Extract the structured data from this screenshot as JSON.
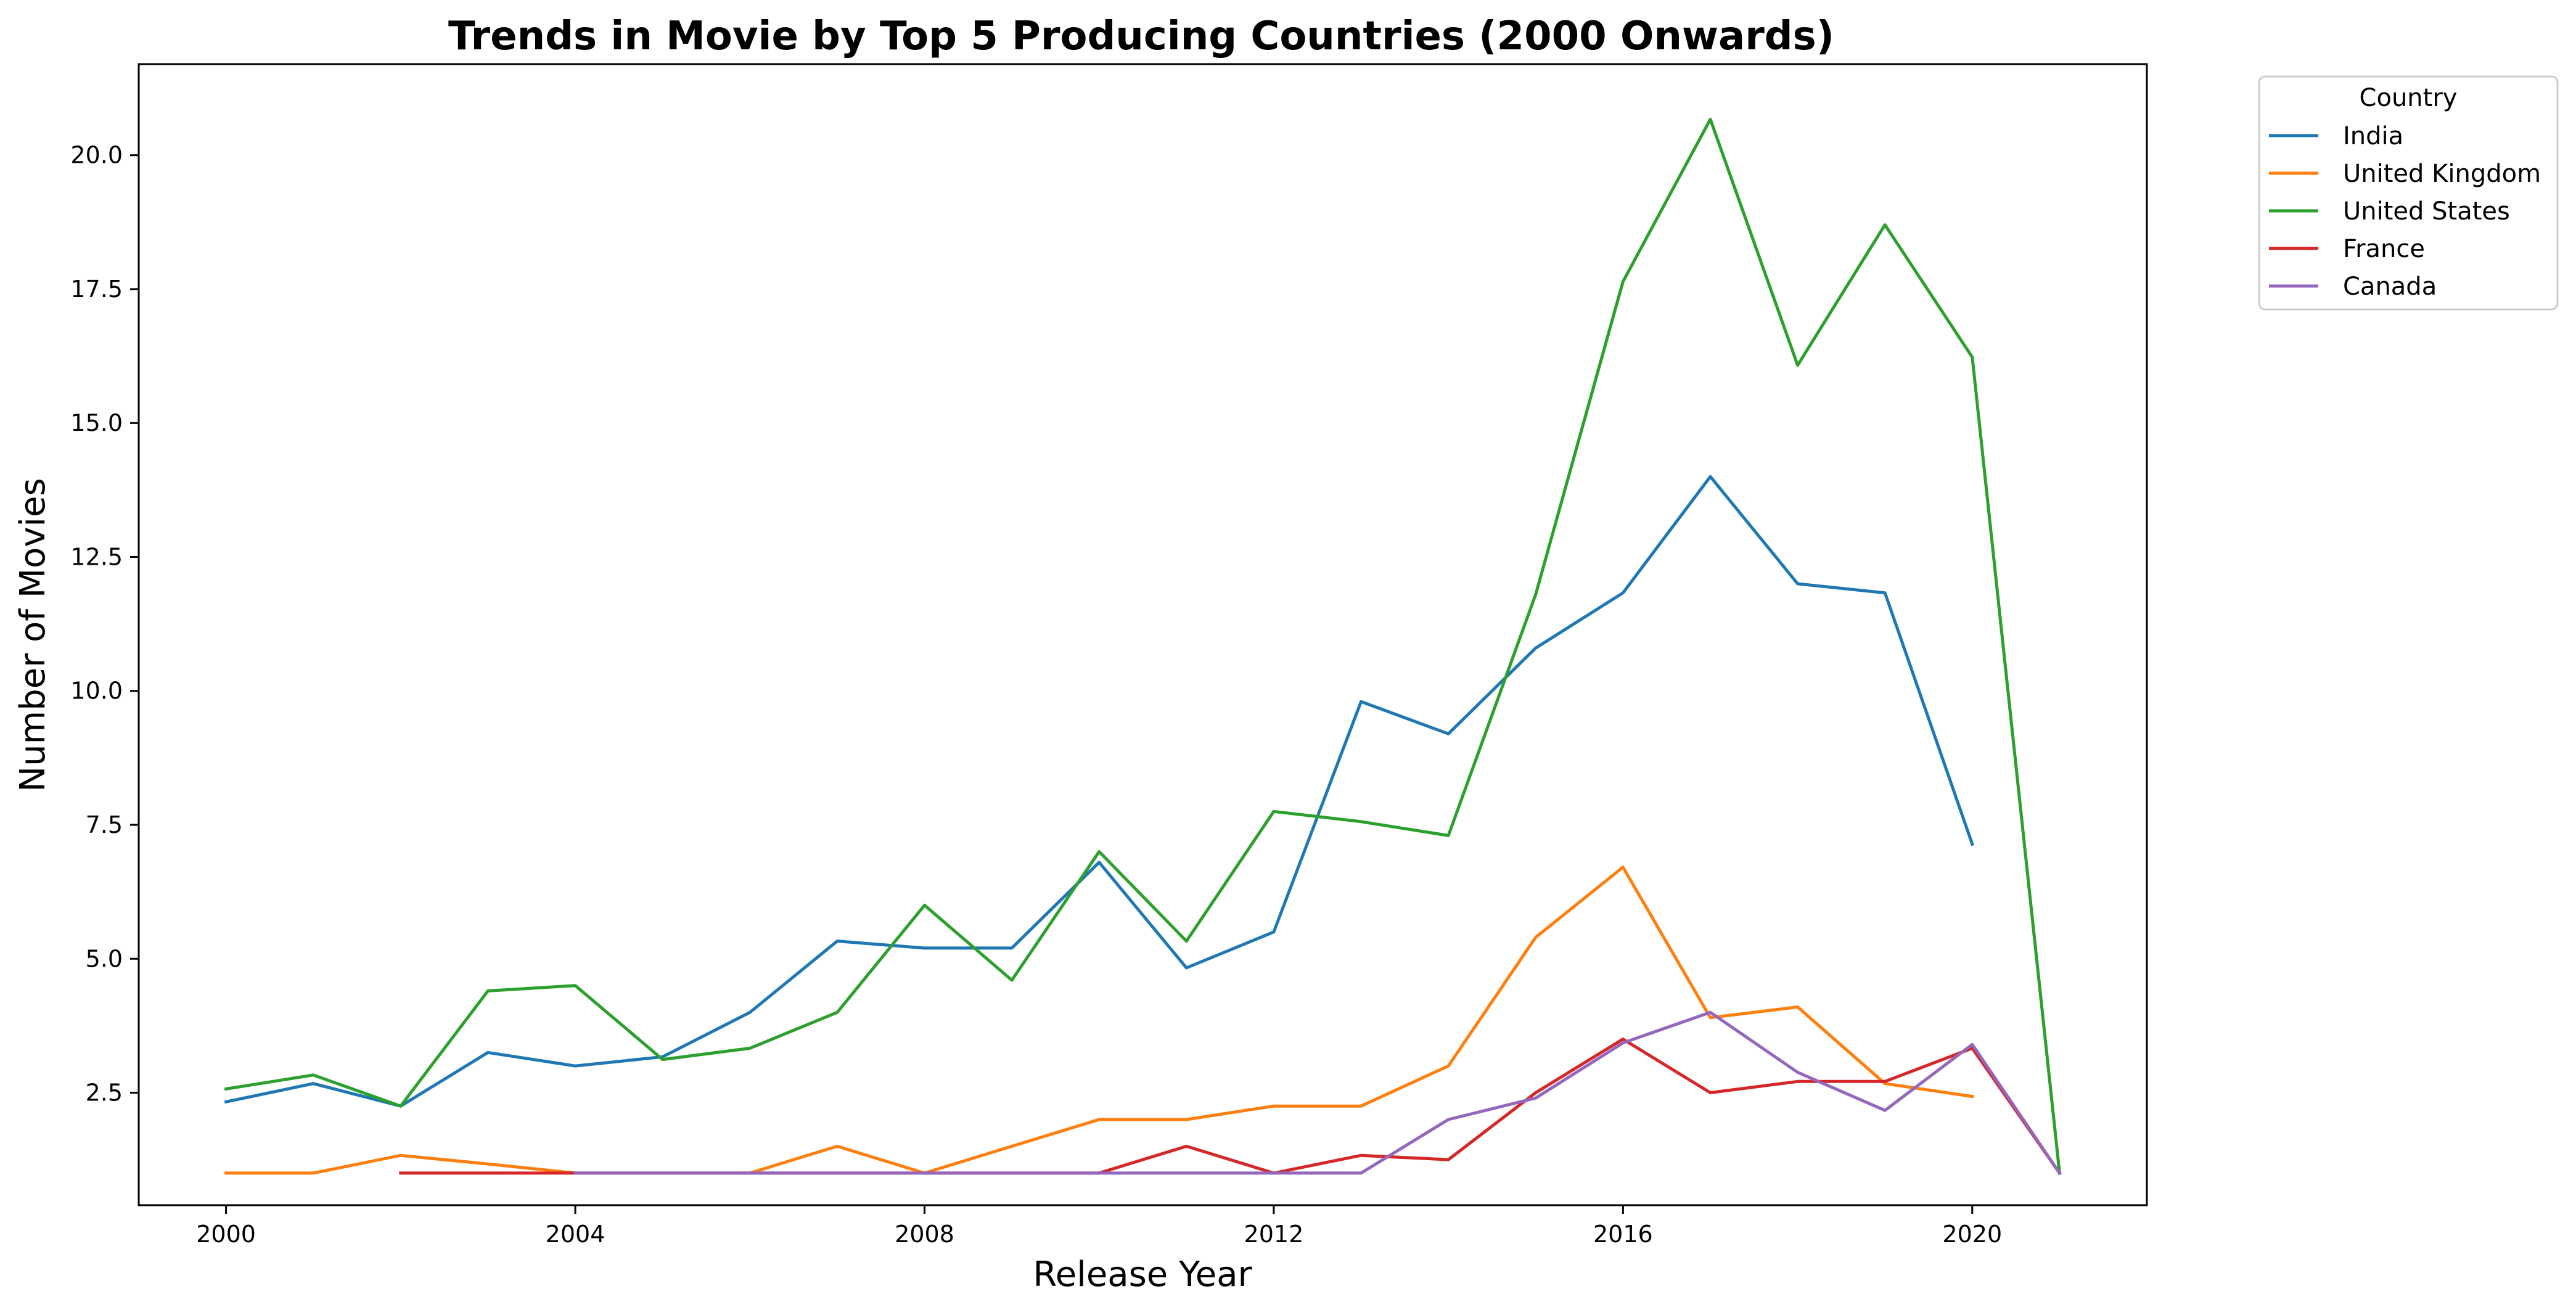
{
  "chart_data": {
    "type": "line",
    "title": "Trends in Movie by Top 5 Producing Countries (2000 Onwards)",
    "xlabel": "Release Year",
    "ylabel": "Number of Movies",
    "xlim": [
      1999,
      2022
    ],
    "ylim": [
      0.4,
      21.7
    ],
    "xticks": [
      2000,
      2004,
      2008,
      2012,
      2016,
      2020
    ],
    "xtick_labels": [
      "2000",
      "2004",
      "2008",
      "2012",
      "2016",
      "2020"
    ],
    "yticks": [
      2.5,
      5.0,
      7.5,
      10.0,
      12.5,
      15.0,
      17.5,
      20.0
    ],
    "ytick_labels": [
      "2.5",
      "5.0",
      "7.5",
      "10.0",
      "12.5",
      "15.0",
      "17.5",
      "20.0"
    ],
    "grid": false,
    "legend": {
      "title": "Country",
      "placement": "outside-top-right"
    },
    "series": [
      {
        "name": "India",
        "color": "#1f77b4",
        "points": [
          [
            2000,
            2.33
          ],
          [
            2001,
            2.67
          ],
          [
            2002,
            2.25
          ],
          [
            2003,
            3.25
          ],
          [
            2004,
            3.0
          ],
          [
            2005,
            3.17
          ],
          [
            2006,
            4.0
          ],
          [
            2007,
            5.33
          ],
          [
            2008,
            5.2
          ],
          [
            2009,
            5.2
          ],
          [
            2010,
            6.8
          ],
          [
            2011,
            4.83
          ],
          [
            2012,
            5.5
          ],
          [
            2013,
            9.8
          ],
          [
            2014,
            9.2
          ],
          [
            2015,
            10.8
          ],
          [
            2016,
            11.83
          ],
          [
            2017,
            14.0
          ],
          [
            2018,
            12.0
          ],
          [
            2019,
            11.83
          ],
          [
            2020,
            7.14
          ]
        ]
      },
      {
        "name": "United Kingdom",
        "color": "#ff7f0e",
        "points": [
          [
            2000,
            1.0
          ],
          [
            2001,
            1.0
          ],
          [
            2002,
            1.33
          ],
          [
            2003,
            1.17
          ],
          [
            2004,
            1.0
          ],
          [
            2005,
            1.0
          ],
          [
            2006,
            1.0
          ],
          [
            2007,
            1.5
          ],
          [
            2008,
            1.0
          ],
          [
            2009,
            1.5
          ],
          [
            2010,
            2.0
          ],
          [
            2011,
            2.0
          ],
          [
            2012,
            2.25
          ],
          [
            2013,
            2.25
          ],
          [
            2014,
            3.0
          ],
          [
            2015,
            5.4
          ],
          [
            2016,
            6.71
          ],
          [
            2017,
            3.9
          ],
          [
            2018,
            4.1
          ],
          [
            2019,
            2.67
          ],
          [
            2020,
            2.43
          ]
        ]
      },
      {
        "name": "United States",
        "color": "#2ca02c",
        "points": [
          [
            2000,
            2.57
          ],
          [
            2001,
            2.83
          ],
          [
            2002,
            2.25
          ],
          [
            2003,
            4.4
          ],
          [
            2004,
            4.5
          ],
          [
            2005,
            3.12
          ],
          [
            2006,
            3.33
          ],
          [
            2007,
            4.0
          ],
          [
            2008,
            6.0
          ],
          [
            2009,
            4.6
          ],
          [
            2010,
            7.0
          ],
          [
            2011,
            5.33
          ],
          [
            2012,
            7.75
          ],
          [
            2013,
            7.56
          ],
          [
            2014,
            7.3
          ],
          [
            2015,
            11.8
          ],
          [
            2016,
            17.64
          ],
          [
            2017,
            20.67
          ],
          [
            2018,
            16.08
          ],
          [
            2019,
            18.7
          ],
          [
            2020,
            16.23
          ],
          [
            2021,
            1.0
          ]
        ]
      },
      {
        "name": "France",
        "color": "#d62728",
        "points": [
          [
            2002,
            1.0
          ],
          [
            2003,
            1.0
          ],
          [
            2004,
            1.0
          ],
          [
            2005,
            1.0
          ],
          [
            2006,
            1.0
          ],
          [
            2007,
            1.0
          ],
          [
            2008,
            1.0
          ],
          [
            2009,
            1.0
          ],
          [
            2010,
            1.0
          ],
          [
            2011,
            1.5
          ],
          [
            2012,
            1.0
          ],
          [
            2013,
            1.33
          ],
          [
            2014,
            1.25
          ],
          [
            2015,
            2.5
          ],
          [
            2016,
            3.5
          ],
          [
            2017,
            2.5
          ],
          [
            2018,
            2.71
          ],
          [
            2019,
            2.71
          ],
          [
            2020,
            3.33
          ],
          [
            2021,
            1.0
          ]
        ]
      },
      {
        "name": "Canada",
        "color": "#9467bd",
        "points": [
          [
            2004,
            1.0
          ],
          [
            2005,
            1.0
          ],
          [
            2006,
            1.0
          ],
          [
            2007,
            1.0
          ],
          [
            2008,
            1.0
          ],
          [
            2009,
            1.0
          ],
          [
            2010,
            1.0
          ],
          [
            2011,
            1.0
          ],
          [
            2012,
            1.0
          ],
          [
            2013,
            1.0
          ],
          [
            2014,
            2.0
          ],
          [
            2015,
            2.4
          ],
          [
            2016,
            3.43
          ],
          [
            2017,
            4.0
          ],
          [
            2018,
            2.88
          ],
          [
            2019,
            2.17
          ],
          [
            2020,
            3.4
          ],
          [
            2021,
            1.0
          ]
        ]
      }
    ]
  }
}
